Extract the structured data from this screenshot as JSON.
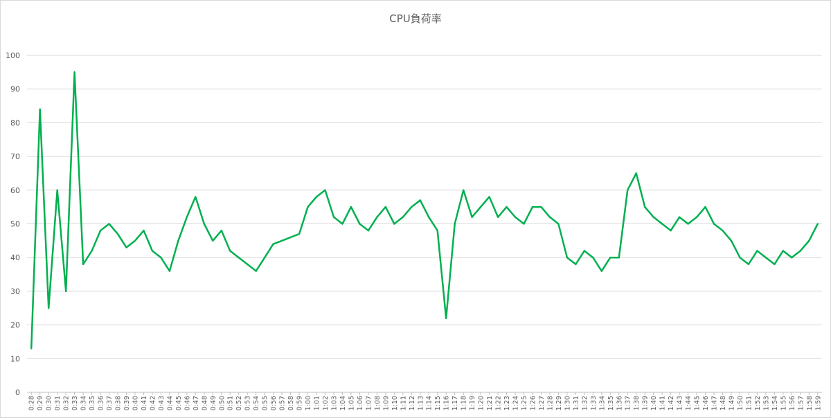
{
  "chart_data": {
    "type": "line",
    "title": "CPU負荷率",
    "xlabel": "",
    "ylabel": "",
    "ylim": [
      0,
      100
    ],
    "yticks": [
      0,
      10,
      20,
      30,
      40,
      50,
      60,
      70,
      80,
      90,
      100
    ],
    "grid": true,
    "legend": "none",
    "line_color": "#00b050",
    "x": [
      "0:28",
      "0:29",
      "0:30",
      "0:31",
      "0:32",
      "0:33",
      "0:34",
      "0:35",
      "0:36",
      "0:37",
      "0:38",
      "0:39",
      "0:40",
      "0:41",
      "0:42",
      "0:43",
      "0:44",
      "0:45",
      "0:46",
      "0:47",
      "0:48",
      "0:49",
      "0:50",
      "0:51",
      "0:52",
      "0:53",
      "0:54",
      "0:55",
      "0:56",
      "0:57",
      "0:58",
      "0:59",
      "1:00",
      "1:01",
      "1:02",
      "1:03",
      "1:04",
      "1:05",
      "1:06",
      "1:07",
      "1:08",
      "1:09",
      "1:10",
      "1:11",
      "1:12",
      "1:13",
      "1:14",
      "1:15",
      "1:16",
      "1:17",
      "1:18",
      "1:19",
      "1:20",
      "1:21",
      "1:22",
      "1:23",
      "1:24",
      "1:25",
      "1:26",
      "1:27",
      "1:28",
      "1:29",
      "1:30",
      "1:31",
      "1:32",
      "1:33",
      "1:34",
      "1:35",
      "1:36",
      "1:37",
      "1:38",
      "1:39",
      "1:40",
      "1:41",
      "1:42",
      "1:43",
      "1:44",
      "1:45",
      "1:46",
      "1:47",
      "1:48",
      "1:49",
      "1:50",
      "1:51",
      "1:52",
      "1:53",
      "1:54",
      "1:55",
      "1:56",
      "1:57",
      "1:58",
      "1:59"
    ],
    "series": [
      {
        "values": [
          13,
          84,
          25,
          60,
          30,
          95,
          38,
          42,
          48,
          50,
          47,
          43,
          45,
          48,
          42,
          40,
          36,
          45,
          52,
          58,
          50,
          45,
          48,
          42,
          40,
          38,
          36,
          40,
          44,
          45,
          46,
          47,
          55,
          58,
          60,
          52,
          50,
          55,
          50,
          48,
          52,
          55,
          50,
          52,
          55,
          57,
          52,
          48,
          22,
          50,
          60,
          52,
          55,
          58,
          52,
          55,
          52,
          50,
          55,
          55,
          52,
          50,
          40,
          38,
          42,
          40,
          36,
          40,
          40,
          60,
          65,
          55,
          52,
          50,
          48,
          52,
          50,
          52,
          55,
          50,
          48,
          45,
          40,
          38,
          42,
          40,
          38,
          42,
          40,
          42,
          45,
          50
        ]
      }
    ]
  }
}
